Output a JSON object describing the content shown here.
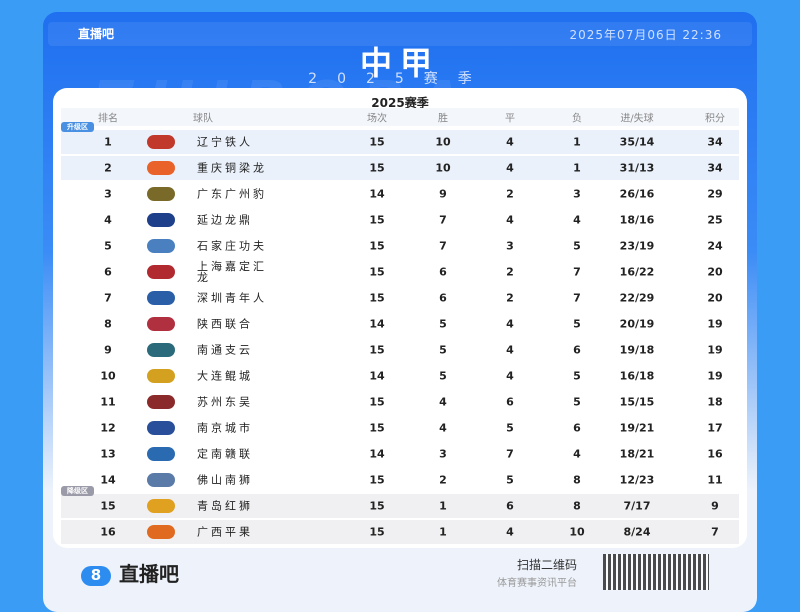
{
  "header": {
    "brand": "直播吧",
    "datetime": "2025年07月06日 22:36",
    "title": "中甲",
    "season": "2025赛季",
    "watermark": "ZHIBOBA"
  },
  "table": {
    "title": "2025赛季",
    "columns": [
      "排名",
      "球队",
      "场次",
      "胜",
      "平",
      "负",
      "进/失球",
      "积分"
    ],
    "zones": {
      "promotion": "升级区",
      "relegation": "降级区"
    },
    "rows": [
      [
        "1",
        "辽宁铁人",
        "15",
        "10",
        "4",
        "1",
        "35/14",
        "34"
      ],
      [
        "2",
        "重庆铜梁龙",
        "15",
        "10",
        "4",
        "1",
        "31/13",
        "34"
      ],
      [
        "3",
        "广东广州豹",
        "14",
        "9",
        "2",
        "3",
        "26/16",
        "29"
      ],
      [
        "4",
        "延边龙鼎",
        "15",
        "7",
        "4",
        "4",
        "18/16",
        "25"
      ],
      [
        "5",
        "石家庄功夫",
        "15",
        "7",
        "3",
        "5",
        "23/19",
        "24"
      ],
      [
        "6",
        "上海嘉定汇龙",
        "15",
        "6",
        "2",
        "7",
        "16/22",
        "20"
      ],
      [
        "7",
        "深圳青年人",
        "15",
        "6",
        "2",
        "7",
        "22/29",
        "20"
      ],
      [
        "8",
        "陕西联合",
        "14",
        "5",
        "4",
        "5",
        "20/19",
        "19"
      ],
      [
        "9",
        "南通支云",
        "15",
        "5",
        "4",
        "6",
        "19/18",
        "19"
      ],
      [
        "10",
        "大连鲲城",
        "14",
        "5",
        "4",
        "5",
        "16/18",
        "19"
      ],
      [
        "11",
        "苏州东吴",
        "15",
        "4",
        "6",
        "5",
        "15/15",
        "18"
      ],
      [
        "12",
        "南京城市",
        "15",
        "4",
        "5",
        "6",
        "19/21",
        "17"
      ],
      [
        "13",
        "定南赣联",
        "14",
        "3",
        "7",
        "4",
        "18/21",
        "16"
      ],
      [
        "14",
        "佛山南狮",
        "15",
        "2",
        "5",
        "8",
        "12/23",
        "11"
      ],
      [
        "15",
        "青岛红狮",
        "15",
        "1",
        "6",
        "8",
        "7/17",
        "9"
      ],
      [
        "16",
        "广西平果",
        "15",
        "1",
        "4",
        "10",
        "8/24",
        "7"
      ]
    ]
  },
  "footer": {
    "brand": "直播吧",
    "scan": "扫描二维码",
    "slogan": "体育赛事资讯平台"
  },
  "colors": {
    "background": "#3b9cf5",
    "promotion": "#4a90e2",
    "relegation": "#9a9aa8"
  }
}
